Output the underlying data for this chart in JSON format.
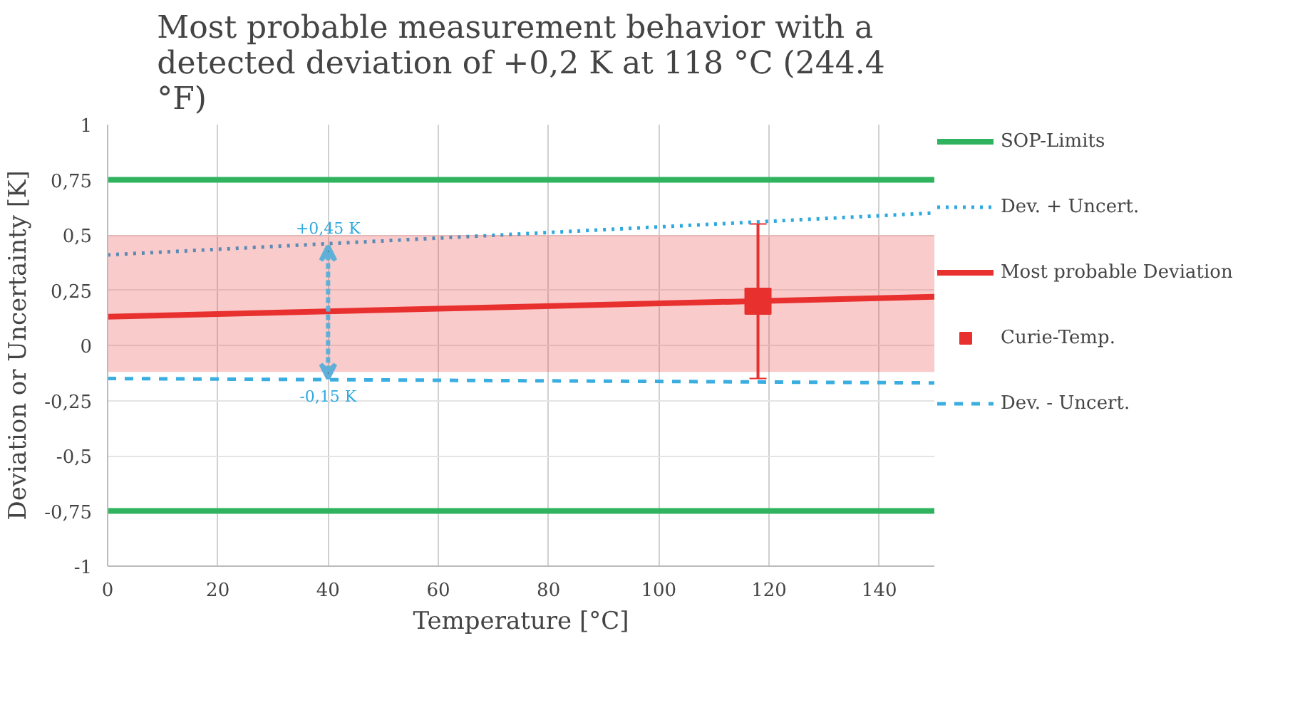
{
  "chart_data": {
    "type": "line",
    "title": "Most probable measurement behavior with a detected deviation of +0,2 K at 118 °C (244.4 °F)",
    "xlabel": "Temperature [°C]",
    "ylabel": "Deviation or Uncertainty [K]",
    "xlim": [
      0,
      150
    ],
    "xticks": [
      0,
      20,
      40,
      60,
      80,
      100,
      120,
      140
    ],
    "ylim": [
      -1,
      1
    ],
    "yticks": [
      {
        "value": -1,
        "label": "-1"
      },
      {
        "value": -0.75,
        "label": "-0,75"
      },
      {
        "value": -0.5,
        "label": "-0,5"
      },
      {
        "value": -0.25,
        "label": "-0,25"
      },
      {
        "value": 0,
        "label": "0"
      },
      {
        "value": 0.25,
        "label": "0,25"
      },
      {
        "value": 0.5,
        "label": "0,5"
      },
      {
        "value": 0.75,
        "label": "0,75"
      },
      {
        "value": 1,
        "label": "1"
      }
    ],
    "grid": true,
    "legend": "right",
    "series": [
      {
        "name": "SOP-Limits",
        "type": "line",
        "color": "#2fb35e",
        "line_style": "solid",
        "x": [
          0,
          150
        ],
        "values": [
          0.75,
          0.75
        ]
      },
      {
        "name": "Dev. + Uncert.",
        "type": "line",
        "color": "#2ea9e0",
        "line_style": "dotted",
        "x": [
          0,
          150
        ],
        "values": [
          0.41,
          0.6
        ]
      },
      {
        "name": "Most probable Deviation",
        "color": "#e8302f",
        "line_style": "solid",
        "x": [
          0,
          150
        ],
        "values": [
          0.13,
          0.22
        ],
        "lower": [
          -0.12,
          -0.12
        ],
        "upper": [
          0.5,
          0.5
        ]
      },
      {
        "name": "Curie-Temp.",
        "type": "scatter",
        "color": "#e8302f",
        "marker": "square",
        "x": [
          118
        ],
        "values": [
          0.2
        ],
        "errors": [
          [
            -0.15,
            0.55
          ]
        ]
      },
      {
        "name": "Dev. - Uncert.",
        "color": "#3aaee0",
        "line_style": "dashed",
        "x": [
          0,
          150
        ],
        "values": [
          -0.15,
          -0.17
        ]
      },
      {
        "color": "#2fb35e",
        "line_style": "solid",
        "x": [
          0,
          150
        ],
        "values": [
          -0.75,
          -0.75
        ]
      }
    ],
    "annotations": [
      {
        "text": "+0,45 K",
        "x": 40,
        "y": 0.45
      },
      {
        "text": "-0,15 K",
        "x": 40,
        "y": -0.15
      }
    ]
  }
}
